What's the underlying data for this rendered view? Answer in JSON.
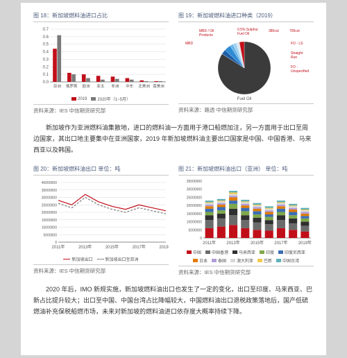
{
  "fig18": {
    "title": "图 18：新加坡燃料油进口占比",
    "type": "bar",
    "categories": [
      "亚洲",
      "俄罗斯",
      "欧洲",
      "亚太",
      "非洲",
      "中东",
      "北美洲",
      "南美洲"
    ],
    "series": [
      {
        "name": "2019",
        "color": "#c10f1a",
        "values": [
          0.44,
          0.12,
          0.1,
          0.08,
          0.07,
          0.05,
          0.02,
          0.01
        ]
      },
      {
        "name": "2020年（1~5月）",
        "color": "#7a7a7a",
        "values": [
          0.62,
          0.1,
          0.05,
          0.03,
          0.04,
          0.03,
          0.01,
          0.01
        ]
      }
    ],
    "ylim": [
      0,
      0.7
    ],
    "ytick": 0.1,
    "bg": "#ffffff",
    "grid": "#d9d9d9",
    "axis": "#888",
    "tick_fontsize": 6,
    "source": "资料来源：IES  中信期货研究部"
  },
  "fig19": {
    "title": "图 19：新加坡燃料油进口种类（2019）",
    "type": "pie",
    "slices": [
      {
        "label": "Fuel Oil",
        "value": 84,
        "color": "#3b3b3b"
      },
      {
        "label": "MBD / Oil Products",
        "value": 3,
        "color": "#1f5fa8"
      },
      {
        "label": "0.5% Sulphur Fuel Oil",
        "value": 4,
        "color": "#2e8bd6"
      },
      {
        "label": "380cst",
        "value": 2,
        "color": "#6bb3e6"
      },
      {
        "label": "FO - LS",
        "value": 2,
        "color": "#9fd1ef"
      },
      {
        "label": "Straight Run",
        "value": 1,
        "color": "#cfe7f7"
      },
      {
        "label": "700cst",
        "value": 1,
        "color": "#e0e0e0"
      },
      {
        "label": "FO - Unspecified",
        "value": 3,
        "color": "#c10f1a"
      }
    ],
    "label_color": "#c10f1a",
    "label_fontsize": 5,
    "source": "资料来源：路透  中信期货研究部"
  },
  "para1": "新加坡作为亚洲燃料油集散地，进口的燃料油一方面用于港口船燃加注，另一方面用于出口至周边国家，其出口地主要集中在亚洲国家，2019 年新加坡燃料油主要出口国家是中国、中国香港、马来西亚以及韩国。",
  "fig20": {
    "title": "图 20：新加坡燃料油出口        单位：吨",
    "type": "line",
    "x": [
      "2011年",
      "2013年",
      "2015年",
      "2017年",
      "2019年"
    ],
    "series": [
      {
        "name": "新加坡出口",
        "color": "#c10f1a",
        "values": [
          28000000,
          25000000,
          32000000,
          27000000,
          24000000,
          22000000,
          25000000,
          23000000,
          21000000
        ]
      },
      {
        "name": "新加坡出口至亚洲",
        "color": "#7a7a7a",
        "dash": true,
        "values": [
          26000000,
          23000000,
          30000000,
          25000000,
          22000000,
          20000000,
          23000000,
          21000000,
          19000000
        ]
      }
    ],
    "ylim": [
      0,
      40000000
    ],
    "ytick": 5000000,
    "bg": "#ffffff",
    "grid": "#d9d9d9",
    "axis": "#888",
    "source": "资料来源：IES  中信期货研究部"
  },
  "fig21": {
    "title": "图 21：新加坡燃料油出口（亚洲）   单位：吨",
    "type": "stacked-bar",
    "x": [
      "2011年",
      "2013年",
      "2015年",
      "2017年",
      "2019年"
    ],
    "xi": [
      0,
      1,
      2,
      3,
      4,
      5,
      6,
      7,
      8
    ],
    "stack_colors": [
      "#c10f1a",
      "#6b6b6b",
      "#2f2f2f",
      "#7fa84a",
      "#3b6db5",
      "#e07b00",
      "#b19cd9",
      "#d9d9d9",
      "#f2c94c",
      "#5fb0b7"
    ],
    "stack_labels": [
      "中国",
      "中国香港",
      "马来西亚",
      "印度",
      "印度尼西亚",
      "日本",
      "泰国",
      "澳大利亚",
      "巴新",
      "中国台湾"
    ],
    "columns": [
      [
        6,
        5,
        3,
        2,
        2,
        1.5,
        1,
        1,
        0.5,
        1
      ],
      [
        7,
        5,
        3,
        2,
        2,
        1.5,
        1,
        1,
        0.5,
        1
      ],
      [
        8,
        6,
        4,
        3,
        2,
        2,
        1,
        1,
        1,
        1
      ],
      [
        6,
        5,
        3,
        2.5,
        2,
        1.5,
        1,
        1,
        0.5,
        1
      ],
      [
        5,
        4.5,
        3,
        2,
        2,
        1.5,
        1,
        1,
        0.5,
        1
      ],
      [
        4.5,
        4,
        2.5,
        2,
        1.5,
        1.5,
        1,
        1,
        0.5,
        1
      ],
      [
        6,
        5,
        3,
        2,
        2,
        1.5,
        1,
        1,
        0.5,
        1
      ],
      [
        5,
        4,
        3,
        2,
        2,
        1.5,
        1,
        1,
        0.5,
        1
      ],
      [
        4,
        3.5,
        2.5,
        2,
        1.5,
        1.5,
        1,
        1,
        0.5,
        1
      ]
    ],
    "ylim": [
      0,
      35000000
    ],
    "ytick": 5000000,
    "bg": "#ffffff",
    "axis": "#888",
    "source": "资料来源：IES  中信期货研究部"
  },
  "para2": "2020 年后，IMO 新规实施，新加坡燃料油出口也发生了一定的变化，出口至印度、马来西亚、巴新占比提升较大；出口至中国、中国台湾占比降幅较大，中国燃料油出口退税政策落地后，国产低硫燃油补充保税船燃市场，未来对新加坡的燃料油进口依存度大概率持续下降。"
}
